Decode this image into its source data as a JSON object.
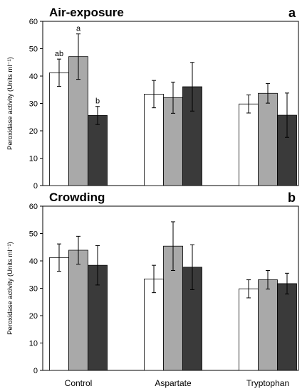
{
  "chart_data": [
    {
      "type": "bar",
      "title": "Air-exposure",
      "panel_label": "a",
      "ylabel": "Peroxidase activity (Units ml⁻¹)",
      "ylim": [
        0,
        60
      ],
      "yticks": [
        0,
        10,
        20,
        30,
        40,
        50,
        60
      ],
      "categories": [
        "Control",
        "Aspartate",
        "Tryptophan"
      ],
      "show_category_labels": false,
      "series": [
        {
          "color": "#ffffff",
          "values": [
            41.2,
            33.4,
            29.8
          ],
          "errors": [
            5.0,
            5.0,
            3.3
          ],
          "annotations": [
            "ab",
            "",
            ""
          ]
        },
        {
          "color": "#a9a9a9",
          "values": [
            47.1,
            32.1,
            33.7
          ],
          "errors": [
            8.3,
            5.7,
            3.6
          ],
          "annotations": [
            "a",
            "",
            ""
          ]
        },
        {
          "color": "#3a3a3a",
          "values": [
            25.6,
            36.1,
            25.7
          ],
          "errors": [
            3.3,
            8.9,
            8.1
          ],
          "annotations": [
            "b",
            "",
            ""
          ]
        }
      ]
    },
    {
      "type": "bar",
      "title": "Crowding",
      "panel_label": "b",
      "ylabel": "Peroxidase activity (Units ml⁻¹)",
      "ylim": [
        0,
        60
      ],
      "yticks": [
        0,
        10,
        20,
        30,
        40,
        50,
        60
      ],
      "categories": [
        "Control",
        "Aspartate",
        "Tryptophan"
      ],
      "show_category_labels": true,
      "series": [
        {
          "color": "#ffffff",
          "values": [
            41.2,
            33.4,
            29.8
          ],
          "errors": [
            5.0,
            5.0,
            3.3
          ],
          "annotations": [
            "",
            "",
            ""
          ]
        },
        {
          "color": "#a9a9a9",
          "values": [
            43.9,
            45.4,
            33.1
          ],
          "errors": [
            5.1,
            8.9,
            3.4
          ],
          "annotations": [
            "",
            "",
            ""
          ]
        },
        {
          "color": "#3a3a3a",
          "values": [
            38.4,
            37.7,
            31.7
          ],
          "errors": [
            7.2,
            8.2,
            3.8
          ],
          "annotations": [
            "",
            "",
            ""
          ]
        }
      ]
    }
  ]
}
